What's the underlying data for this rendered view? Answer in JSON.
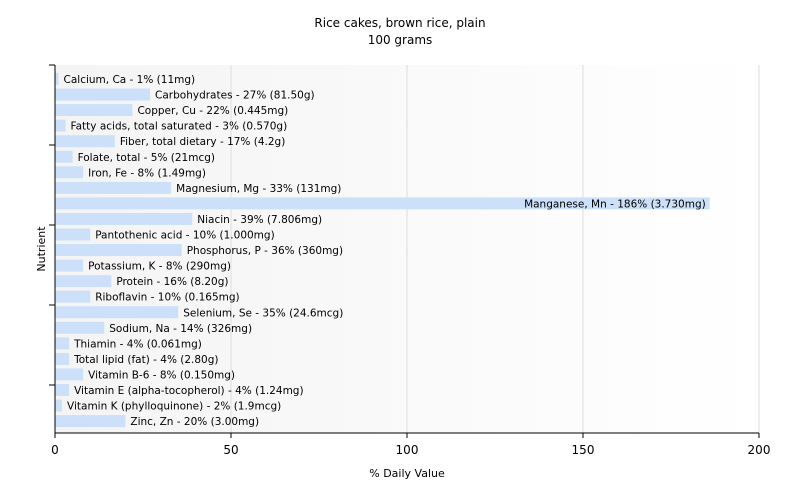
{
  "chart_data": {
    "type": "bar",
    "orientation": "horizontal",
    "title": "Rice cakes, brown rice, plain",
    "subtitle": "100 grams",
    "xlabel": "% Daily Value",
    "ylabel": "Nutrient",
    "xlim": [
      0,
      200
    ],
    "xticks": [
      0,
      50,
      100,
      150,
      200
    ],
    "grid": true,
    "bar_color": "#cce0fa",
    "categories": [
      "Calcium, Ca",
      "Carbohydrates",
      "Copper, Cu",
      "Fatty acids, total saturated",
      "Fiber, total dietary",
      "Folate, total",
      "Iron, Fe",
      "Magnesium, Mg",
      "Manganese, Mn",
      "Niacin",
      "Pantothenic acid",
      "Phosphorus, P",
      "Potassium, K",
      "Protein",
      "Riboflavin",
      "Selenium, Se",
      "Sodium, Na",
      "Thiamin",
      "Total lipid (fat)",
      "Vitamin B-6",
      "Vitamin E (alpha-tocopherol)",
      "Vitamin K (phylloquinone)",
      "Zinc, Zn"
    ],
    "values": [
      1,
      27,
      22,
      3,
      17,
      5,
      8,
      33,
      186,
      39,
      10,
      36,
      8,
      16,
      10,
      35,
      14,
      4,
      4,
      8,
      4,
      2,
      20
    ],
    "amounts": [
      "11mg",
      "81.50g",
      "0.445mg",
      "0.570g",
      "4.2g",
      "21mcg",
      "1.49mg",
      "131mg",
      "3.730mg",
      "7.806mg",
      "1.000mg",
      "360mg",
      "290mg",
      "8.20g",
      "0.165mg",
      "24.6mcg",
      "326mg",
      "0.061mg",
      "2.80g",
      "0.150mg",
      "1.24mg",
      "1.9mcg",
      "3.00mg"
    ]
  }
}
